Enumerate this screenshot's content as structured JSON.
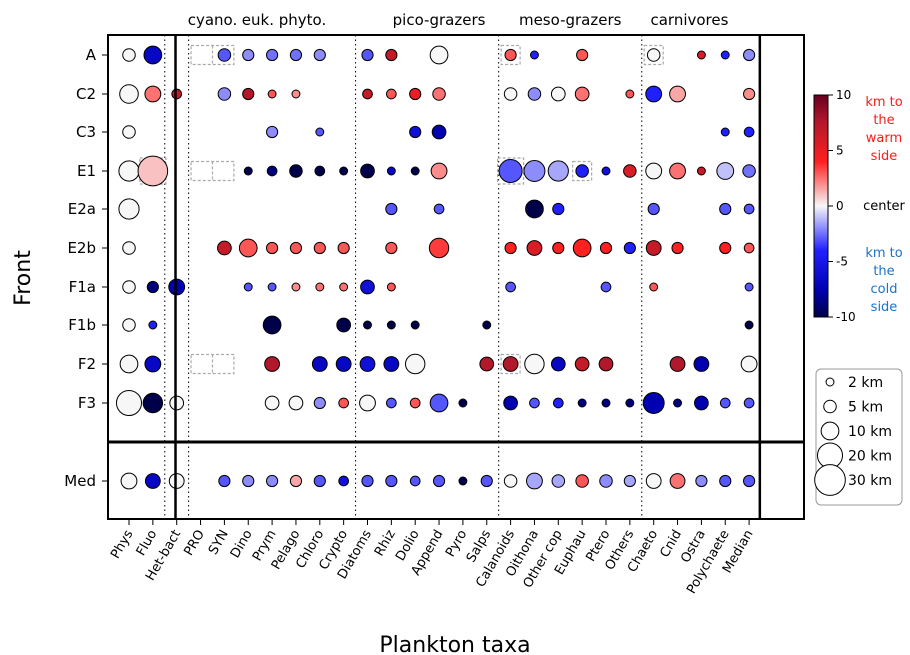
{
  "chart_data": {
    "type": "scatter",
    "xlabel": "Plankton taxa",
    "ylabel": "Front",
    "x_categories": [
      "Phys",
      "Fluo",
      "Het-bact",
      "PRO",
      "SYN",
      "Dino",
      "Prym",
      "Pelago",
      "Chloro",
      "Crypto",
      "Diatoms",
      "Rhiz",
      "Dolio",
      "Append",
      "Pyro",
      "Salps",
      "Calanoids",
      "Oithona",
      "Other cop",
      "Euphau",
      "Ptero",
      "Others",
      "Chaeto",
      "Cnid",
      "Ostra",
      "Polychaete",
      "Median"
    ],
    "y_categories": [
      "A",
      "C2",
      "C3",
      "E1",
      "E2a",
      "E2b",
      "F1a",
      "F1b",
      "F2",
      "F3",
      "Med"
    ],
    "groups": [
      {
        "label": "cyano.",
        "from": "PRO",
        "to": "SYN"
      },
      {
        "label": "euk. phyto.",
        "from": "Dino",
        "to": "Chloro"
      },
      {
        "label": "pico-grazers",
        "from": "Rhiz",
        "to": "Salps"
      },
      {
        "label": "meso-grazers",
        "from": "Calanoids",
        "to": "Others"
      },
      {
        "label": "carnivores",
        "from": "Chaeto",
        "to": "Polychaete"
      }
    ],
    "colorbar": {
      "min": -10,
      "max": 10,
      "ticks": [
        "10",
        "5",
        "0",
        "-5",
        "-10"
      ],
      "top_label": [
        "km to",
        "the",
        "warm",
        "side"
      ],
      "center_label": "center",
      "bottom_label": [
        "km to",
        "the",
        "cold",
        "side"
      ]
    },
    "size_legend": [
      {
        "label": "2 km",
        "value": 2
      },
      {
        "label": "5 km",
        "value": 5
      },
      {
        "label": "10 km",
        "value": 10
      },
      {
        "label": "20 km",
        "value": 20
      },
      {
        "label": "30 km",
        "value": 30
      }
    ],
    "rows": {
      "A": {
        "Phys": [
          5,
          0
        ],
        "Fluo": [
          10,
          -7
        ],
        "SYN": [
          5,
          -3
        ],
        "Dino": [
          4,
          -2
        ],
        "Prym": [
          4,
          -2.5
        ],
        "Pelago": [
          4,
          -2.5
        ],
        "Chloro": [
          4,
          -2
        ],
        "Diatoms": [
          4,
          -3
        ],
        "Rhiz": [
          4,
          7
        ],
        "Append": [
          10,
          0
        ],
        "Calanoids": [
          4,
          3
        ],
        "Oithona": [
          2,
          -4
        ],
        "Euphau": [
          4,
          3
        ],
        "Chaeto": [
          5,
          0
        ],
        "Ostra": [
          2,
          6
        ],
        "Polychaete": [
          2,
          -4
        ],
        "Median": [
          4,
          -2
        ]
      },
      "C2": {
        "Phys": [
          11,
          0
        ],
        "Fluo": [
          8,
          2.5
        ],
        "Het-bact": [
          3,
          7
        ],
        "SYN": [
          5,
          -2
        ],
        "Dino": [
          4,
          8
        ],
        "Prym": [
          2,
          3
        ],
        "Pelago": [
          2,
          2
        ],
        "Diatoms": [
          3,
          7
        ],
        "Rhiz": [
          3,
          3
        ],
        "Dolio": [
          4,
          5
        ],
        "Append": [
          5,
          2.5
        ],
        "Calanoids": [
          5,
          0
        ],
        "Oithona": [
          5,
          -2
        ],
        "Other cop": [
          6,
          0
        ],
        "Euphau": [
          6,
          2.5
        ],
        "Others": [
          2,
          3
        ],
        "Chaeto": [
          8,
          -4
        ],
        "Cnid": [
          8,
          1.5
        ],
        "Median": [
          4,
          2
        ]
      },
      "C3": {
        "Phys": [
          5,
          0
        ],
        "Prym": [
          4,
          -2
        ],
        "Chloro": [
          2,
          -3
        ],
        "Dolio": [
          4,
          -6
        ],
        "Append": [
          6,
          -8
        ],
        "Polychaete": [
          2,
          -4
        ],
        "Median": [
          3,
          -4
        ]
      },
      "E1": {
        "Phys": [
          13,
          0
        ],
        "Fluo": [
          28,
          1
        ],
        "Dino": [
          2,
          -10
        ],
        "Prym": [
          3,
          -9
        ],
        "Pelago": [
          5,
          -10
        ],
        "Chloro": [
          3,
          -10
        ],
        "Crypto": [
          2,
          -10
        ],
        "Diatoms": [
          6,
          -10
        ],
        "Rhiz": [
          2,
          -7
        ],
        "Dolio": [
          2,
          -10
        ],
        "Append": [
          8,
          2
        ],
        "Calanoids": [
          17,
          -3
        ],
        "Oithona": [
          14,
          -2
        ],
        "Other cop": [
          13,
          -1.5
        ],
        "Euphau": [
          5,
          -4
        ],
        "Ptero": [
          2,
          -6
        ],
        "Others": [
          5,
          6
        ],
        "Chaeto": [
          8,
          0
        ],
        "Cnid": [
          8,
          2.5
        ],
        "Ostra": [
          2,
          7
        ],
        "Polychaete": [
          9,
          -1
        ],
        "Median": [
          5,
          -2.5
        ]
      },
      "E2a": {
        "Phys": [
          13,
          0
        ],
        "Rhiz": [
          4,
          -3
        ],
        "Append": [
          3,
          -3
        ],
        "Oithona": [
          10,
          -10
        ],
        "Other cop": [
          4,
          -4
        ],
        "Chaeto": [
          4,
          -3
        ],
        "Polychaete": [
          4,
          -3
        ],
        "Median": [
          3,
          -3
        ]
      },
      "E2b": {
        "Phys": [
          5,
          0
        ],
        "SYN": [
          6,
          7
        ],
        "Dino": [
          10,
          3
        ],
        "Prym": [
          4,
          3
        ],
        "Pelago": [
          4,
          3
        ],
        "Chloro": [
          4,
          3
        ],
        "Crypto": [
          4,
          3
        ],
        "Rhiz": [
          4,
          3
        ],
        "Append": [
          12,
          3.5
        ],
        "Calanoids": [
          4,
          4
        ],
        "Oithona": [
          7,
          6
        ],
        "Other cop": [
          4,
          4
        ],
        "Euphau": [
          10,
          4
        ],
        "Ptero": [
          4,
          4
        ],
        "Others": [
          4,
          -4
        ],
        "Chaeto": [
          7,
          7
        ],
        "Cnid": [
          4,
          4
        ],
        "Polychaete": [
          4,
          4
        ],
        "Median": [
          3,
          3
        ]
      },
      "F1a": {
        "Phys": [
          5,
          0
        ],
        "Fluo": [
          4,
          -9
        ],
        "Het-bact": [
          8,
          -8
        ],
        "Dino": [
          2,
          -3
        ],
        "Prym": [
          2,
          -3
        ],
        "Pelago": [
          2,
          2
        ],
        "Chloro": [
          2,
          2.5
        ],
        "Crypto": [
          2,
          2.5
        ],
        "Diatoms": [
          6,
          -6
        ],
        "Rhiz": [
          2,
          3
        ],
        "Calanoids": [
          3,
          -3
        ],
        "Ptero": [
          3,
          -3
        ],
        "Chaeto": [
          2,
          3
        ],
        "Median": [
          2,
          -3
        ]
      },
      "F1b": {
        "Phys": [
          5,
          0
        ],
        "Fluo": [
          2,
          -4
        ],
        "Prym": [
          10,
          -10
        ],
        "Crypto": [
          6,
          -10
        ],
        "Diatoms": [
          2,
          -10
        ],
        "Rhiz": [
          2,
          -10
        ],
        "Dolio": [
          2,
          -10
        ],
        "Salps": [
          2,
          -10
        ],
        "Median": [
          2,
          -10
        ]
      },
      "F2": {
        "Phys": [
          10,
          0
        ],
        "Fluo": [
          8,
          -7
        ],
        "Prym": [
          7,
          8
        ],
        "Chloro": [
          7,
          -7
        ],
        "Crypto": [
          7,
          -7
        ],
        "Diatoms": [
          7,
          -6
        ],
        "Rhiz": [
          7,
          -7
        ],
        "Dolio": [
          12,
          0
        ],
        "Salps": [
          6,
          8
        ],
        "Calanoids": [
          7,
          8
        ],
        "Oithona": [
          12,
          0
        ],
        "Other cop": [
          6,
          -7
        ],
        "Euphau": [
          6,
          7
        ],
        "Ptero": [
          6,
          8
        ],
        "Cnid": [
          7,
          8
        ],
        "Ostra": [
          7,
          -8
        ],
        "Median": [
          8,
          0
        ]
      },
      "F3": {
        "Phys": [
          20,
          0
        ],
        "Fluo": [
          12,
          -10
        ],
        "Het-bact": [
          6,
          0
        ],
        "Prym": [
          6,
          0
        ],
        "Pelago": [
          6,
          0
        ],
        "Chloro": [
          4,
          -2
        ],
        "Crypto": [
          3,
          3
        ],
        "Diatoms": [
          8,
          0
        ],
        "Rhiz": [
          3,
          -3
        ],
        "Dolio": [
          3,
          3
        ],
        "Append": [
          10,
          -3
        ],
        "Pyro": [
          2,
          -10
        ],
        "Calanoids": [
          6,
          -8
        ],
        "Oithona": [
          3,
          -3
        ],
        "Other cop": [
          3,
          -4
        ],
        "Euphau": [
          2,
          -9
        ],
        "Ptero": [
          2,
          -9
        ],
        "Others": [
          2,
          -9
        ],
        "Chaeto": [
          14,
          -8
        ],
        "Cnid": [
          2,
          -9
        ],
        "Ostra": [
          6,
          -8
        ],
        "Polychaete": [
          3,
          -3
        ],
        "Median": [
          3,
          -3
        ]
      },
      "Med": {
        "Phys": [
          8,
          0
        ],
        "Fluo": [
          7,
          -7
        ],
        "Het-bact": [
          7,
          0
        ],
        "SYN": [
          4,
          -3
        ],
        "Dino": [
          4,
          -2
        ],
        "Prym": [
          4,
          -2
        ],
        "Pelago": [
          4,
          1.5
        ],
        "Chloro": [
          4,
          -3
        ],
        "Crypto": [
          3,
          -6
        ],
        "Diatoms": [
          4,
          -3
        ],
        "Rhiz": [
          4,
          -3
        ],
        "Dolio": [
          3,
          -3
        ],
        "Append": [
          4,
          -3
        ],
        "Pyro": [
          2,
          -10
        ],
        "Salps": [
          4,
          -3
        ],
        "Calanoids": [
          5,
          0
        ],
        "Oithona": [
          8,
          -1.5
        ],
        "Other cop": [
          5,
          -1.5
        ],
        "Euphau": [
          5,
          3
        ],
        "Ptero": [
          5,
          -2
        ],
        "Others": [
          4,
          -1.5
        ],
        "Chaeto": [
          7,
          0
        ],
        "Cnid": [
          7,
          2.5
        ],
        "Ostra": [
          4,
          -2
        ],
        "Polychaete": [
          4,
          -3
        ],
        "Median": [
          4,
          -3
        ]
      }
    },
    "dashed_boxes": [
      {
        "row": "A",
        "cols": [
          "PRO",
          "SYN"
        ]
      },
      {
        "row": "A",
        "cols": [
          "Calanoids"
        ]
      },
      {
        "row": "A",
        "cols": [
          "Chaeto"
        ]
      },
      {
        "row": "E1",
        "cols": [
          "Fluo"
        ]
      },
      {
        "row": "E1",
        "cols": [
          "PRO",
          "SYN"
        ]
      },
      {
        "row": "E1",
        "cols": [
          "Calanoids"
        ]
      },
      {
        "row": "E1",
        "cols": [
          "Euphau"
        ]
      },
      {
        "row": "F2",
        "cols": [
          "PRO",
          "SYN"
        ]
      },
      {
        "row": "F2",
        "cols": [
          "Calanoids"
        ]
      }
    ]
  }
}
